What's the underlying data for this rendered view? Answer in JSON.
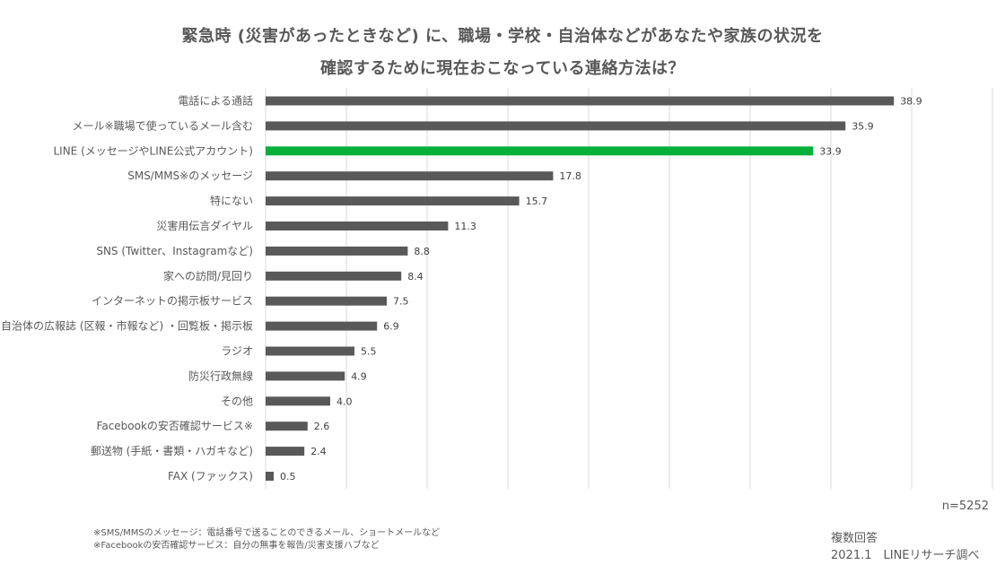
{
  "header": {
    "title_line1": "緊急時 (災害があったときなど) に、職場・学校・自治体などがあなたや家族の状況を",
    "title_line2": "確認するために現在おこなっている連絡方法は？"
  },
  "footer": {
    "sample_size": "n=5252",
    "note1": "※SMS/MMSのメッセージ：電話番号で送ることのできるメール、ショートメールなど",
    "note2": "※Facebookの安否確認サービス：自分の無事を報告/災害支援ハブなど",
    "answer_type": "複数回答",
    "source": "2021.1　LINEリサーチ調べ"
  },
  "chart_data": {
    "type": "bar",
    "orientation": "horizontal",
    "title": "緊急時 (災害があったときなど) に、職場・学校・自治体などがあなたや家族の状況を確認するために現在おこなっている連絡方法は？",
    "categories": [
      "電話による通話",
      "メール※職場で使っているメール含む",
      "LINE (メッセージやLINE公式アカウント)",
      "SMS/MMS※のメッセージ",
      "特にない",
      "災害用伝言ダイヤル",
      "SNS (Twitter、Instagramなど)",
      "家への訪問/見回り",
      "インターネットの掲示板サービス",
      "自治体の広報誌 (区報・市報など) ・回覧板・掲示板",
      "ラジオ",
      "防災行政無線",
      "その他",
      "Facebookの安否確認サービス※",
      "郵送物 (手紙・書類・ハガキなど)",
      "FAX (ファックス)"
    ],
    "values": [
      38.9,
      35.9,
      33.9,
      17.8,
      15.7,
      11.3,
      8.8,
      8.4,
      7.5,
      6.9,
      5.5,
      4.9,
      4.0,
      2.6,
      2.4,
      0.5
    ],
    "value_labels": [
      "38.9",
      "35.9",
      "33.9",
      "17.8",
      "15.7",
      "11.3",
      "8.8",
      "8.4",
      "7.5",
      "6.9",
      "5.5",
      "4.9",
      "4.0",
      "2.6",
      "2.4",
      "0.5"
    ],
    "xlim": [
      0,
      45
    ],
    "grid": true,
    "grid_step": 5,
    "colors": {
      "default_bar": "#595959",
      "highlight_bar": "#06b03b",
      "gridline": "#d9d9d9"
    },
    "highlight_index": 2
  }
}
